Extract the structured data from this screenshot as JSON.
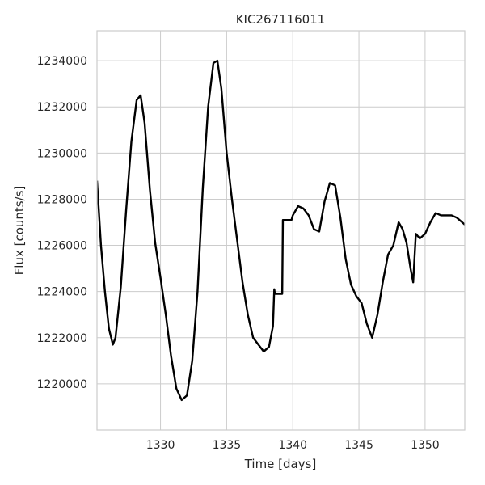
{
  "chart_data": {
    "type": "line",
    "title": "KIC267116011",
    "xlabel": "Time [days]",
    "ylabel": "Flux [counts/s]",
    "xlim": [
      1325.2,
      1353.0
    ],
    "ylim": [
      1218000,
      1235300
    ],
    "grid": true,
    "legend": "none",
    "line_color": "#000000",
    "xticks": [
      1330,
      1335,
      1340,
      1345,
      1350
    ],
    "xtick_labels": [
      "1330",
      "1335",
      "1340",
      "1345",
      "1350"
    ],
    "yticks": [
      1220000,
      1222000,
      1224000,
      1226000,
      1228000,
      1230000,
      1232000,
      1234000
    ],
    "ytick_labels": [
      "1220000",
      "1222000",
      "1224000",
      "1226000",
      "1228000",
      "1230000",
      "1232000",
      "1234000"
    ],
    "series": [
      {
        "x": [
          1325.2,
          1325.5,
          1325.8,
          1326.1,
          1326.4,
          1326.6,
          1327.0,
          1327.4,
          1327.8,
          1328.2,
          1328.5,
          1328.8,
          1329.2,
          1329.6,
          1330.0,
          1330.4,
          1330.8,
          1331.2,
          1331.6,
          1332.0,
          1332.4,
          1332.8,
          1333.2,
          1333.6,
          1334.0,
          1334.3,
          1334.6,
          1335.0,
          1335.4,
          1335.8,
          1336.2,
          1336.6,
          1337.0,
          1337.4,
          1337.8,
          1338.2,
          1338.5,
          1338.6,
          1338.65,
          1339.2,
          1339.25,
          1339.9,
          1340.0,
          1340.4,
          1340.8,
          1341.2,
          1341.6,
          1342.0,
          1342.4,
          1342.8,
          1343.2,
          1343.6,
          1344.0,
          1344.4,
          1344.8,
          1345.2,
          1345.6,
          1346.0,
          1346.4,
          1346.8,
          1347.2,
          1347.6,
          1348.0,
          1348.3,
          1348.6,
          1348.9,
          1349.1,
          1349.3,
          1349.6,
          1350.0,
          1350.4,
          1350.8,
          1351.2,
          1351.6,
          1352.0,
          1352.4,
          1352.8,
          1353.0
        ],
        "y": [
          1228800,
          1226000,
          1224000,
          1222400,
          1221700,
          1222000,
          1224200,
          1227500,
          1230500,
          1232300,
          1232500,
          1231300,
          1228400,
          1226100,
          1224600,
          1223000,
          1221200,
          1219800,
          1219300,
          1219500,
          1221000,
          1224000,
          1228500,
          1232000,
          1233900,
          1234000,
          1232800,
          1230000,
          1228000,
          1226200,
          1224400,
          1223000,
          1222000,
          1221700,
          1221400,
          1221600,
          1222500,
          1224100,
          1223900,
          1223900,
          1227100,
          1227100,
          1227300,
          1227700,
          1227600,
          1227300,
          1226700,
          1226600,
          1227900,
          1228700,
          1228600,
          1227200,
          1225400,
          1224300,
          1223800,
          1223500,
          1222600,
          1222000,
          1223000,
          1224400,
          1225600,
          1226000,
          1227000,
          1226700,
          1226100,
          1225000,
          1224400,
          1226500,
          1226300,
          1226500,
          1227000,
          1227400,
          1227300,
          1227300,
          1227300,
          1227200,
          1227000,
          1226900
        ]
      }
    ]
  }
}
